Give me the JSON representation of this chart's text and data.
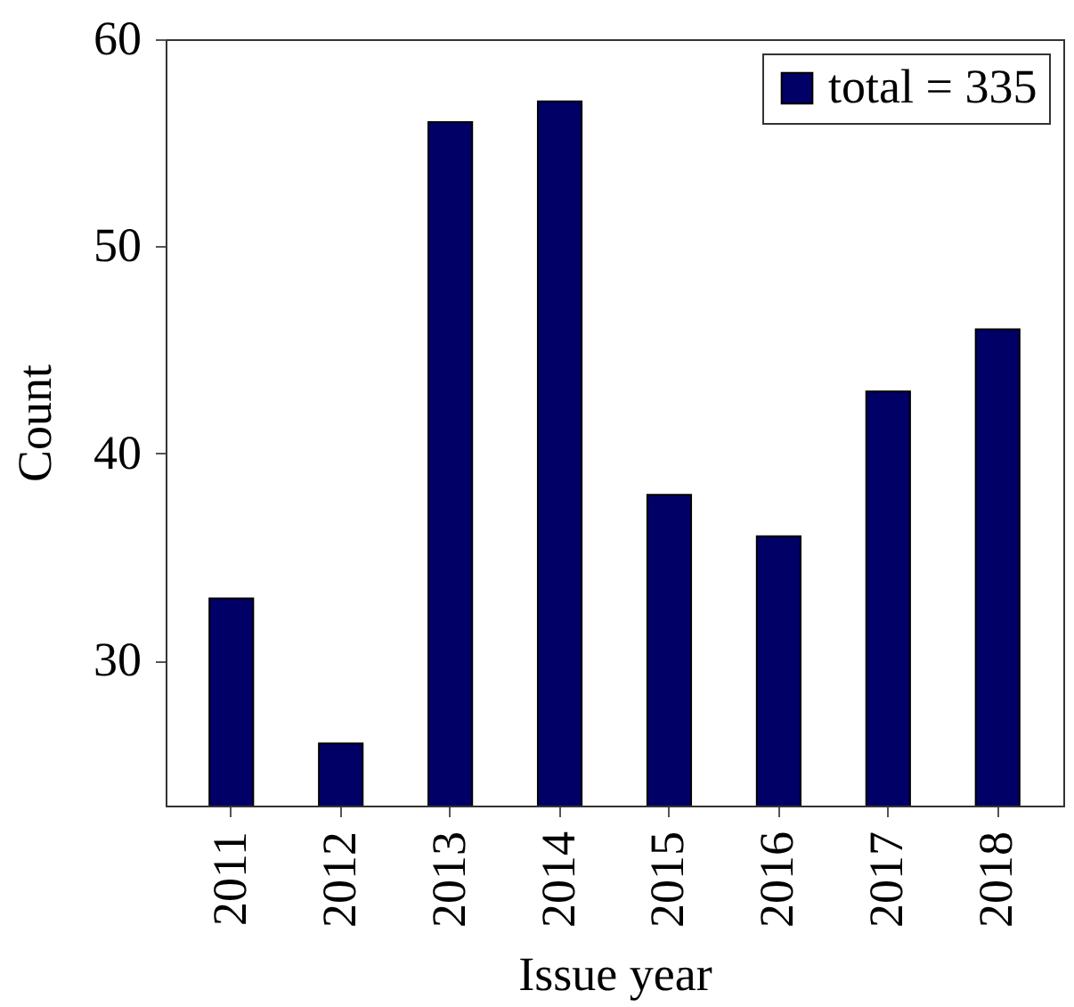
{
  "chart_data": {
    "type": "bar",
    "categories": [
      "2011",
      "2012",
      "2013",
      "2014",
      "2015",
      "2016",
      "2017",
      "2018"
    ],
    "series": [
      {
        "name": "total = 335",
        "color": "#000066",
        "values": [
          33,
          26,
          56,
          57,
          38,
          36,
          43,
          46
        ]
      }
    ],
    "xlabel": "Issue year",
    "ylabel": "Count",
    "ylim": [
      23,
      60
    ],
    "yticks": [
      30,
      40,
      50,
      60
    ],
    "legend": "top right"
  }
}
